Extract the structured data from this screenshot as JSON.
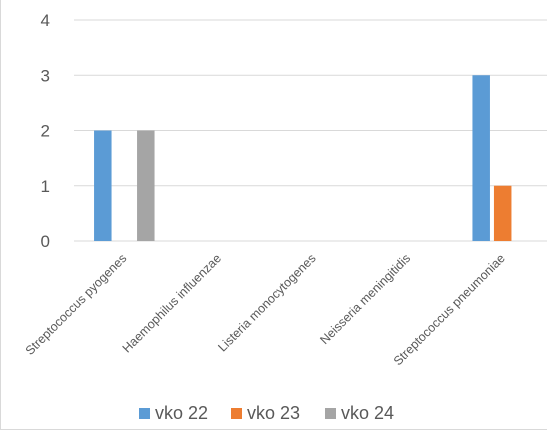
{
  "chart_data": {
    "type": "bar",
    "title": "",
    "xlabel": "",
    "ylabel": "",
    "categories": [
      "Streptococcus pyogenes",
      "Haemophilus influenzae",
      "Listeria monocytogenes",
      "Neisseria meningitidis",
      "Streptococcus pneumoniae"
    ],
    "series": [
      {
        "name": "vko 22",
        "color": "#5b9bd5",
        "values": [
          2,
          0,
          0,
          0,
          3
        ]
      },
      {
        "name": "vko 23",
        "color": "#ed7d31",
        "values": [
          0,
          0,
          0,
          0,
          1
        ]
      },
      {
        "name": "vko 24",
        "color": "#a5a5a5",
        "values": [
          2,
          0,
          0,
          0,
          0
        ]
      }
    ],
    "ylim": [
      0,
      4
    ],
    "yticks": [
      "0",
      "1",
      "2",
      "3",
      "4"
    ],
    "grid": true,
    "legend_position": "bottom"
  }
}
